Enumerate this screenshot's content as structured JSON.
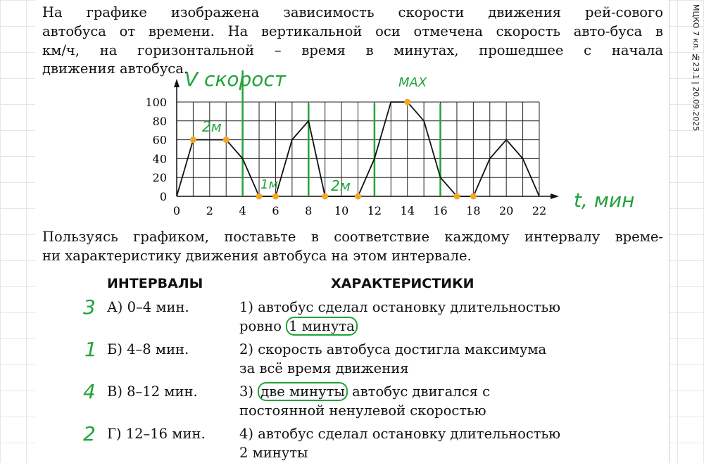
{
  "side_label": "МЦКО 7 кл. №23.1 | 20.09.2025",
  "intro_lines": [
    "На графике изображена зависимость скорости движения рей-сового",
    "автобуса от времени. На вертикальной оси отмечена скорость авто-буса в",
    "км/ч, на горизонтальной – время в минутах, прошедшее с начала",
    "движения автобуса."
  ],
  "task_lines": [
    "Пользуясь графиком, поставьте в соответствие каждому интервалу време-",
    "ни характеристику движения автобуса на этом интервале."
  ],
  "headers": {
    "intervals": "ИНТЕРВАЛЫ",
    "characteristics": "ХАРАКТЕРИСТИКИ"
  },
  "intervals": [
    {
      "label": "А) 0–4 мин.",
      "answer": "3"
    },
    {
      "label": "Б) 4–8 мин.",
      "answer": "1"
    },
    {
      "label": "В) 8–12 мин.",
      "answer": "4"
    },
    {
      "label": "Г) 12–16 мин.",
      "answer": "2"
    }
  ],
  "characteristics": [
    {
      "line1": "1) автобус сделал остановку длительностью",
      "line2_pre": "ровно ",
      "line2_circled": "1 минута",
      "line2_post": ""
    },
    {
      "line1": "2) скорость автобуса достигла максимума",
      "line2_pre": "за всё время движения",
      "line2_circled": "",
      "line2_post": ""
    },
    {
      "line1_pre": "3) ",
      "line1_circled": "две минуты",
      "line1_post": " автобус двигался с",
      "line2_pre": "постоянной ненулевой скоростью"
    },
    {
      "line1": "4) автобус сделал остановку длительностью",
      "line2_pre": "2 минуты",
      "line2_circled": "",
      "line2_post": ""
    }
  ],
  "handwriting": {
    "v_axis": "V скорост",
    "t_axis": "t, мин",
    "max": "MAX",
    "seg1": "2м",
    "seg2": "1м",
    "seg3": "2м"
  },
  "colors": {
    "annotation": "#22a33a",
    "marker": "#f5a623",
    "line": "#111111"
  },
  "chart_data": {
    "type": "line",
    "x": [
      0,
      1,
      3,
      4,
      5,
      6,
      7,
      8,
      9,
      11,
      12,
      13,
      14,
      15,
      16,
      17,
      18,
      19,
      20,
      21,
      22
    ],
    "values": [
      0,
      60,
      60,
      40,
      0,
      0,
      60,
      80,
      0,
      0,
      40,
      100,
      100,
      80,
      20,
      0,
      0,
      40,
      60,
      40,
      0
    ],
    "xlim": [
      0,
      22
    ],
    "ylim": [
      0,
      100
    ],
    "xticks": [
      0,
      2,
      4,
      6,
      8,
      10,
      12,
      14,
      16,
      18,
      20,
      22
    ],
    "yticks": [
      0,
      20,
      40,
      60,
      80,
      100
    ],
    "grid": true,
    "highlighted_x": [
      1,
      3,
      5,
      6,
      9,
      11,
      14,
      17,
      18
    ],
    "interval_markers_x": [
      4,
      8,
      12,
      16
    ]
  }
}
